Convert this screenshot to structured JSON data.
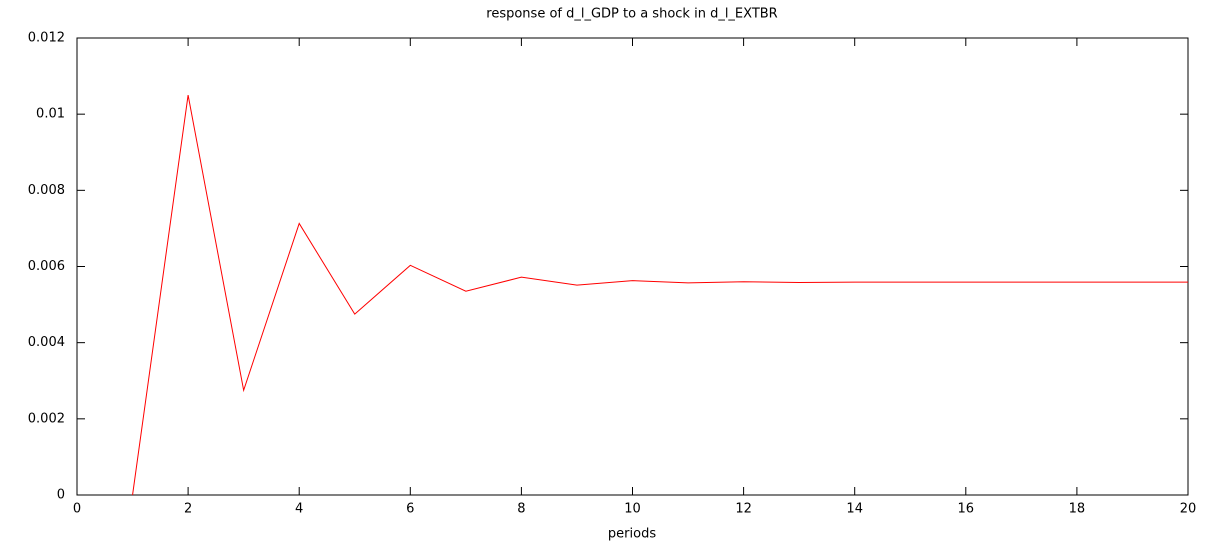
{
  "chart_data": {
    "type": "line",
    "title": "response of d_l_GDP to a shock in d_l_EXTBR",
    "x_label": "periods",
    "x": [
      1,
      2,
      3,
      4,
      5,
      6,
      7,
      8,
      9,
      10,
      11,
      12,
      13,
      14,
      15,
      16,
      17,
      18,
      19,
      20
    ],
    "series": [
      {
        "color": "#ff0000",
        "values": [
          0,
          0.0105,
          0.00275,
          0.00713,
          0.00475,
          0.00603,
          0.00535,
          0.00572,
          0.00551,
          0.00563,
          0.00557,
          0.0056,
          0.00558,
          0.00559,
          0.00559,
          0.00559,
          0.00559,
          0.00559,
          0.00559,
          0.00559
        ]
      }
    ],
    "xlim": [
      0,
      20
    ],
    "xticks": [
      0,
      2,
      4,
      6,
      8,
      10,
      12,
      14,
      16,
      18,
      20
    ],
    "ylim": [
      0,
      0.012
    ],
    "yticks": [
      0,
      0.002,
      0.004,
      0.006,
      0.008,
      0.01,
      0.012
    ],
    "grid": false
  }
}
